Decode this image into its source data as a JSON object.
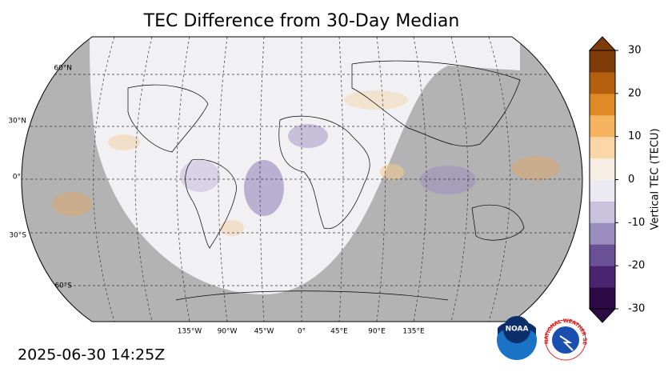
{
  "title": "TEC Difference from 30-Day Median",
  "map": {
    "lat_labels": [
      "60°N",
      "30°N",
      "0°",
      "30°S",
      "60°S"
    ],
    "lon_labels": [
      "135°W",
      "90°W",
      "45°W",
      "0°",
      "45°E",
      "90°E",
      "135°E"
    ]
  },
  "colorbar": {
    "label": "Vertical TEC (TECU)",
    "lim": [
      -30,
      30
    ],
    "ticks": [
      -30,
      -20,
      -10,
      0,
      10,
      20,
      30
    ],
    "colors": [
      "#2d0a45",
      "#4a2470",
      "#6a5096",
      "#9a8cbc",
      "#c8c2dc",
      "#ebe9f1",
      "#f6eee4",
      "#fbd6a6",
      "#f6b461",
      "#df8a25",
      "#b4600f",
      "#7f3b08"
    ]
  },
  "timestamp": "2025-06-30 14:25Z",
  "logos": {
    "noaa": "NOAA",
    "nws": "NATIONAL WEATHER SERVICE"
  }
}
